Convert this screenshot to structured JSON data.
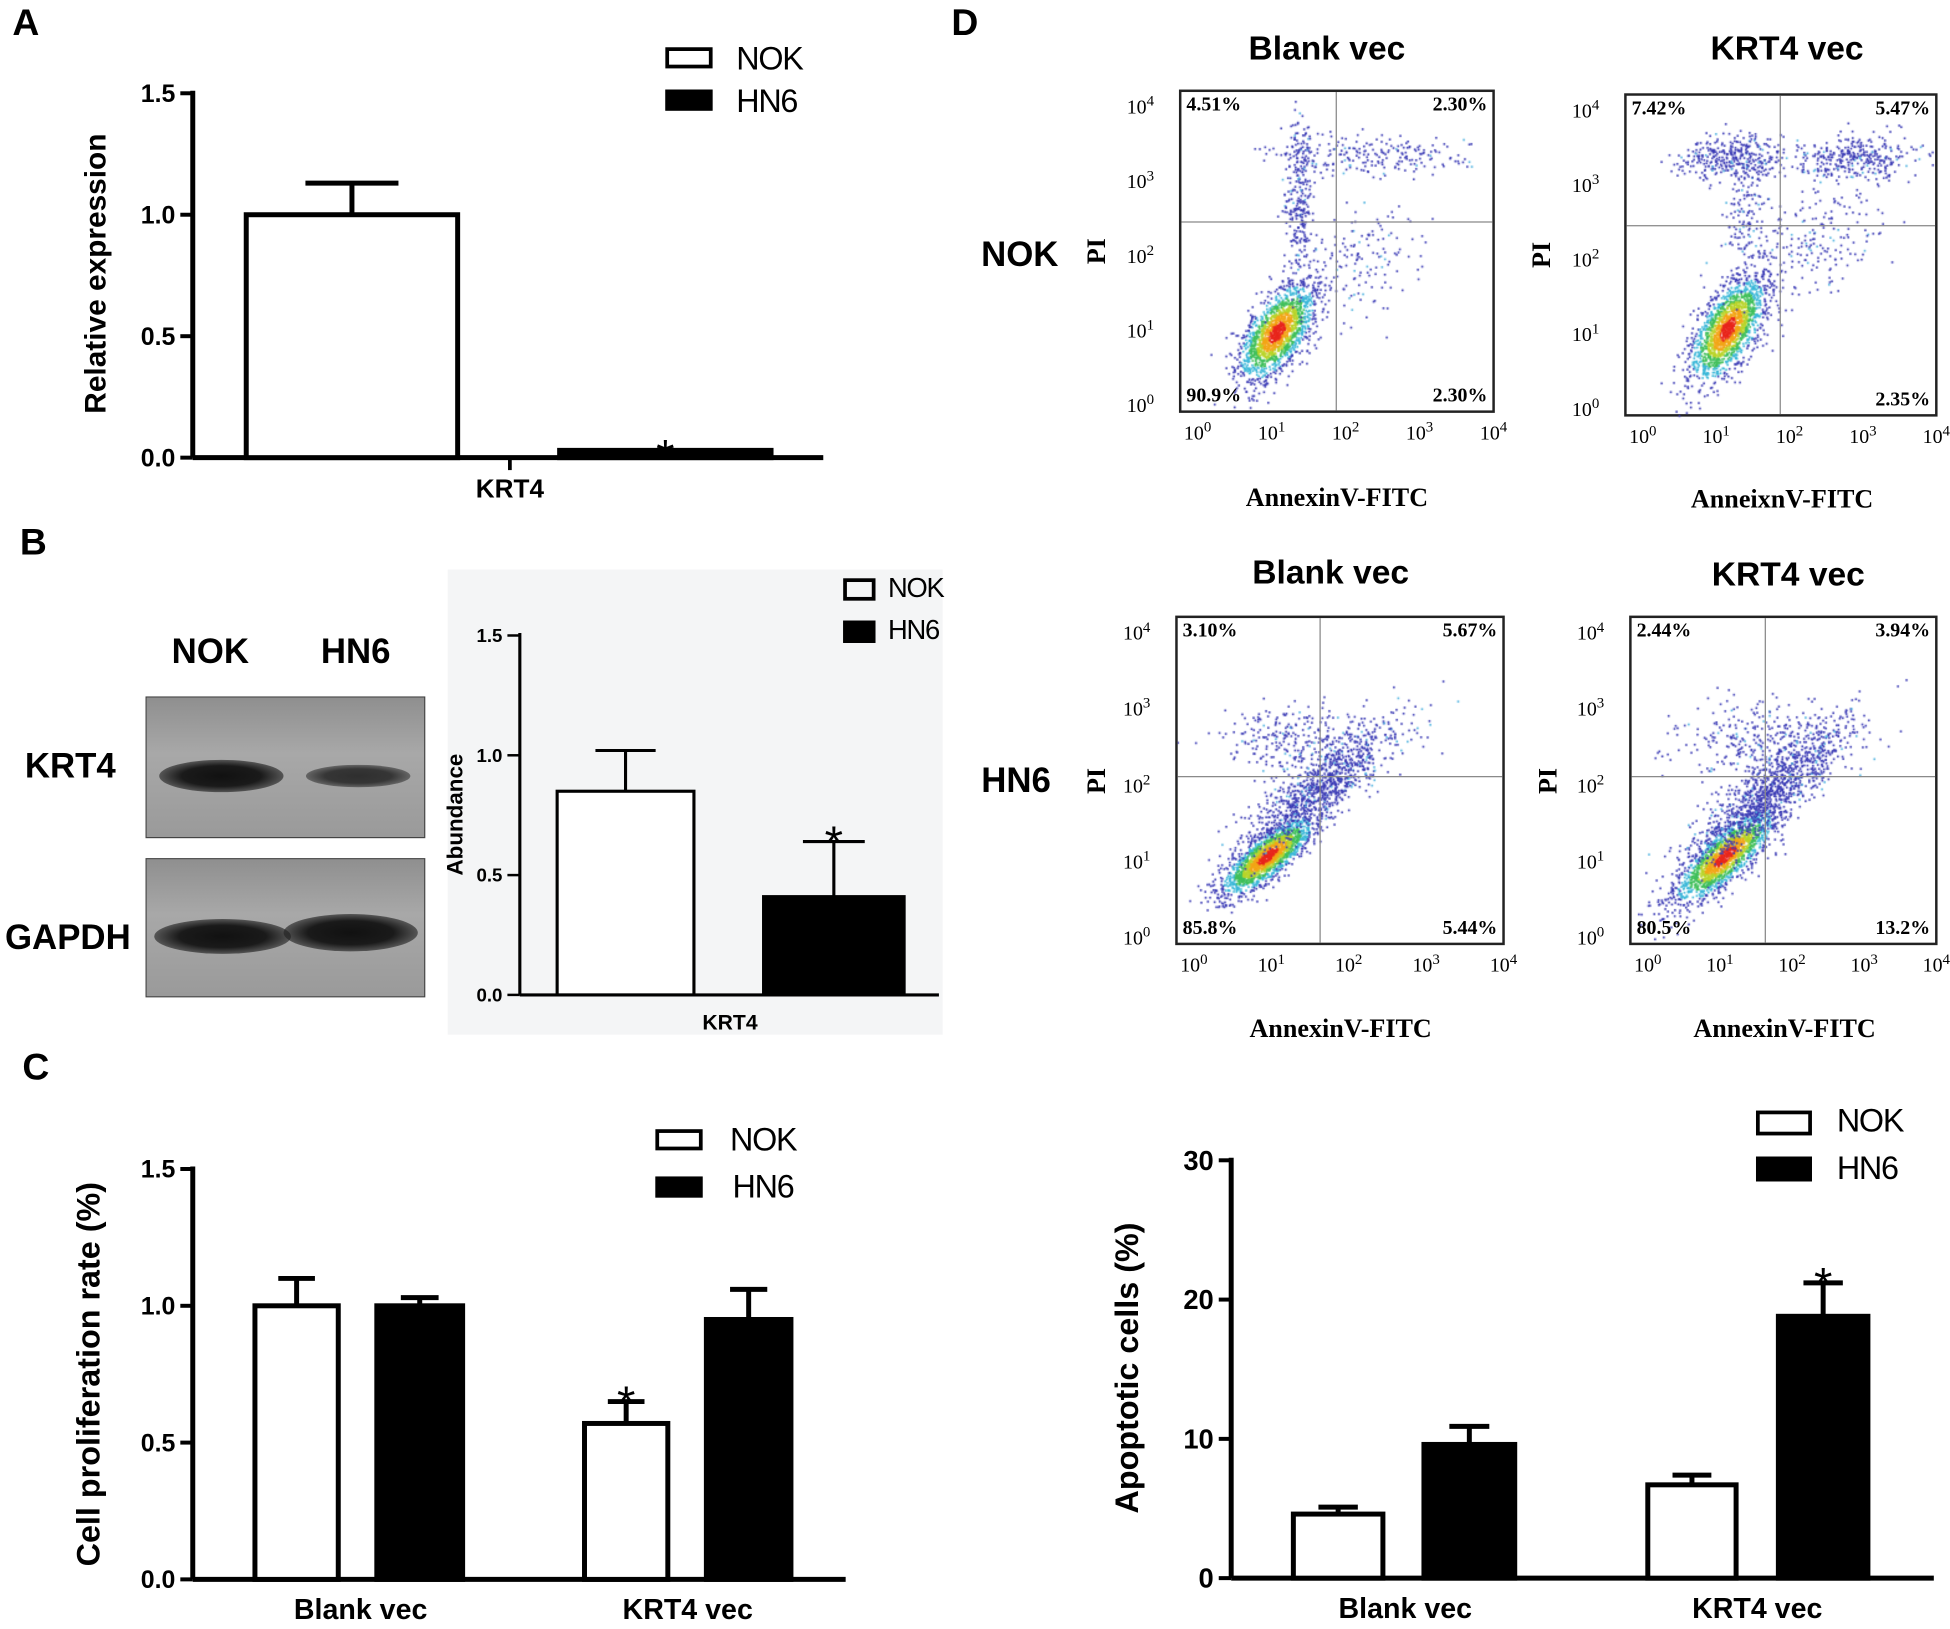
{
  "panel_labels": {
    "a": "A",
    "b": "B",
    "c": "C",
    "d": "D"
  },
  "legend": {
    "nok": "NOK",
    "hn6": "HN6"
  },
  "colors": {
    "nok": "#ffffff",
    "hn6": "#000000",
    "outline": "#000000"
  },
  "blot": {
    "lanes": [
      "NOK",
      "HN6"
    ],
    "rows": [
      "KRT4",
      "GAPDH"
    ]
  },
  "flow": {
    "row_labels": [
      "NOK",
      "HN6"
    ],
    "tick_base": "10",
    "tick_exps": [
      "0",
      "1",
      "2",
      "3",
      "4"
    ]
  },
  "chart_data": [
    {
      "type": "bar",
      "panel": "A",
      "categories": [
        "KRT4"
      ],
      "ylabel": "Relative expression",
      "xlabel": "",
      "ylim": [
        0,
        1.5
      ],
      "yticks": [
        "0.0",
        "0.5",
        "1.0",
        "1.5"
      ],
      "series": [
        {
          "name": "NOK",
          "values": [
            1.0
          ],
          "error": [
            0.13
          ]
        },
        {
          "name": "HN6",
          "values": [
            0.03
          ],
          "error": [
            0.0
          ]
        }
      ],
      "annotations": [
        {
          "category": 0,
          "series": 1,
          "label": "*"
        }
      ],
      "legend": "top-right"
    },
    {
      "type": "bar",
      "panel": "B",
      "categories": [
        "KRT4"
      ],
      "ylabel": "Abundance",
      "xlabel": "",
      "ylim": [
        0,
        1.5
      ],
      "yticks": [
        "0.0",
        "0.5",
        "1.0",
        "1.5"
      ],
      "series": [
        {
          "name": "NOK",
          "values": [
            0.85
          ],
          "error": [
            0.17
          ]
        },
        {
          "name": "HN6",
          "values": [
            0.41
          ],
          "error": [
            0.23
          ]
        }
      ],
      "annotations": [
        {
          "category": 0,
          "series": 1,
          "label": "*"
        }
      ],
      "legend": "top-right"
    },
    {
      "type": "bar",
      "panel": "C",
      "categories": [
        "Blank vec",
        "KRT4 vec"
      ],
      "ylabel": "Cell proliferation rate (%)",
      "xlabel": "",
      "ylim": [
        0,
        1.5
      ],
      "yticks": [
        "0.0",
        "0.5",
        "1.0",
        "1.5"
      ],
      "series": [
        {
          "name": "NOK",
          "values": [
            1.0,
            0.57
          ],
          "error": [
            0.1,
            0.08
          ]
        },
        {
          "name": "HN6",
          "values": [
            1.0,
            0.95
          ],
          "error": [
            0.03,
            0.11
          ]
        }
      ],
      "annotations": [
        {
          "category": 1,
          "series": 0,
          "label": "*"
        }
      ],
      "legend": "top-right"
    },
    {
      "type": "bar",
      "panel": "D",
      "categories": [
        "Blank vec",
        "KRT4 vec"
      ],
      "ylabel": "Apoptotic cells (%)",
      "xlabel": "",
      "ylim": [
        0,
        30
      ],
      "yticks": [
        "0",
        "10",
        "20",
        "30"
      ],
      "series": [
        {
          "name": "NOK",
          "values": [
            4.6,
            6.7
          ],
          "error": [
            0.5,
            0.7
          ]
        },
        {
          "name": "HN6",
          "values": [
            9.6,
            18.8
          ],
          "error": [
            1.3,
            2.4
          ]
        }
      ],
      "annotations": [
        {
          "category": 1,
          "series": 1,
          "label": "*"
        }
      ],
      "legend": "top-right"
    },
    {
      "type": "scatter",
      "panel": "D",
      "cell": "NOK",
      "title": "Blank vec",
      "xlabel": "AnnexinV-FITC",
      "ylabel": "PI",
      "x_scale": "log",
      "y_scale": "log",
      "xlim": [
        1,
        10000
      ],
      "ylim": [
        1,
        10000
      ],
      "quadrants": {
        "upper_left": "4.51%",
        "upper_right": "2.30%",
        "lower_left": "90.9%",
        "lower_right": "2.30%"
      }
    },
    {
      "type": "scatter",
      "panel": "D",
      "cell": "NOK",
      "title": "KRT4 vec",
      "xlabel": "AnneixnV-FITC",
      "ylabel": "PI",
      "x_scale": "log",
      "y_scale": "log",
      "xlim": [
        1,
        10000
      ],
      "ylim": [
        1,
        10000
      ],
      "quadrants": {
        "upper_left": "7.42%",
        "upper_right": "5.47%",
        "lower_left": "",
        "lower_right": "2.35%"
      }
    },
    {
      "type": "scatter",
      "panel": "D",
      "cell": "HN6",
      "title": "Blank vec",
      "xlabel": "AnnexinV-FITC",
      "ylabel": "PI",
      "x_scale": "log",
      "y_scale": "log",
      "xlim": [
        1,
        10000
      ],
      "ylim": [
        1,
        10000
      ],
      "quadrants": {
        "upper_left": "3.10%",
        "upper_right": "5.67%",
        "lower_left": "85.8%",
        "lower_right": "5.44%"
      }
    },
    {
      "type": "scatter",
      "panel": "D",
      "cell": "HN6",
      "title": "KRT4 vec",
      "xlabel": "AnnexinV-FITC",
      "ylabel": "PI",
      "x_scale": "log",
      "y_scale": "log",
      "xlim": [
        1,
        10000
      ],
      "ylim": [
        1,
        10000
      ],
      "quadrants": {
        "upper_left": "2.44%",
        "upper_right": "3.94%",
        "lower_left": "80.5%",
        "lower_right": "13.2%"
      }
    }
  ]
}
